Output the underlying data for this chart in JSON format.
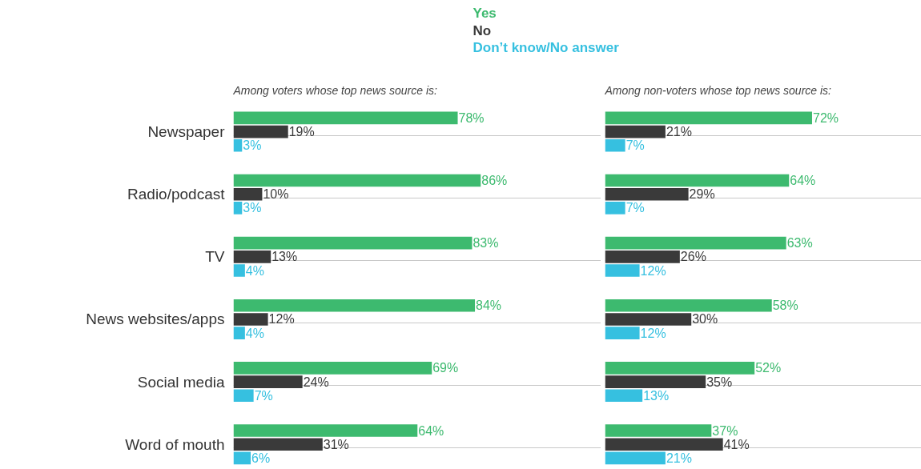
{
  "chart_data": [
    {
      "type": "bar",
      "orientation": "horizontal",
      "title": "Among voters whose top news source is:",
      "categories": [
        "Newspaper",
        "Radio/podcast",
        "TV",
        "News websites/apps",
        "Social media",
        "Word of mouth"
      ],
      "series": [
        {
          "name": "Yes",
          "color": "#3dba6f",
          "values": [
            78,
            86,
            83,
            84,
            69,
            64
          ],
          "value_labels": [
            "78%",
            "86%",
            "83%",
            "84%",
            "69%",
            "64%"
          ]
        },
        {
          "name": "No",
          "color": "#3a3a3a",
          "values": [
            19,
            10,
            13,
            12,
            24,
            31
          ],
          "value_labels": [
            "19%",
            "10%",
            "13%",
            "12%",
            "24%",
            "31%"
          ]
        },
        {
          "name": "Don’t know/No answer",
          "color": "#36c0e0",
          "values": [
            3,
            3,
            4,
            4,
            7,
            6
          ],
          "value_labels": [
            "3%",
            "3%",
            "4%",
            "4%",
            "7%",
            "6%"
          ]
        }
      ],
      "legend": "top",
      "grid": "y",
      "tick_labels": "y"
    },
    {
      "type": "bar",
      "orientation": "horizontal",
      "title": "Among non-voters whose top news source is:",
      "categories": [
        null,
        null,
        null,
        null,
        null,
        null
      ],
      "series": [
        {
          "color": "#3dba6f",
          "values": [
            72,
            64,
            63,
            58,
            52,
            37
          ],
          "value_labels": [
            "72%",
            "64%",
            "63%",
            "58%",
            "52%",
            "37%"
          ]
        },
        {
          "color": "#3a3a3a",
          "values": [
            21,
            29,
            26,
            30,
            35,
            41
          ],
          "value_labels": [
            "21%",
            "29%",
            "26%",
            "30%",
            "35%",
            "41%"
          ]
        },
        {
          "color": "#36c0e0",
          "values": [
            7,
            7,
            12,
            12,
            13,
            21
          ],
          "value_labels": [
            "7%",
            "7%",
            "12%",
            "12%",
            "13%",
            "21%"
          ]
        }
      ],
      "grid": "y",
      "tick_labels": false
    }
  ]
}
